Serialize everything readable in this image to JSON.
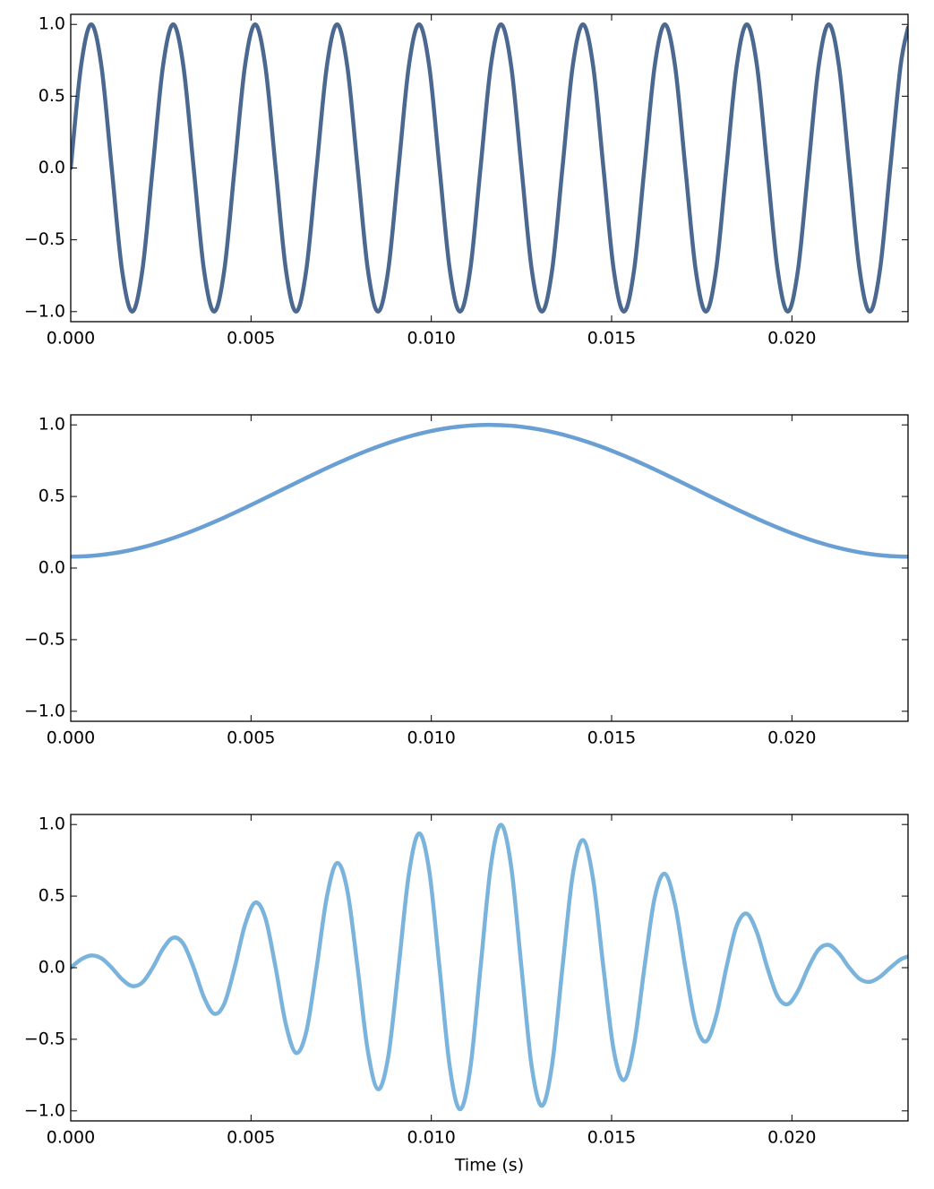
{
  "chart_data": [
    {
      "type": "line",
      "x": [
        0,
        0.000284,
        0.000568,
        0.000852,
        0.001136,
        0.00142,
        0.001705,
        0.001989,
        0.002273,
        0.002557,
        0.002841,
        0.003125,
        0.003409,
        0.003693,
        0.003977,
        0.004261,
        0.004545,
        0.00483,
        0.005114,
        0.005398,
        0.005682,
        0.005966,
        0.00625,
        0.006534,
        0.006818,
        0.007102,
        0.007386,
        0.00767,
        0.007955,
        0.008239,
        0.008523,
        0.008807,
        0.009091,
        0.009375,
        0.009659,
        0.009943,
        0.010227,
        0.010511,
        0.010795,
        0.01108,
        0.011364,
        0.011648,
        0.011932,
        0.012216,
        0.0125,
        0.012784,
        0.013068,
        0.013352,
        0.013636,
        0.01392,
        0.014205,
        0.014489,
        0.014773,
        0.015057,
        0.015341,
        0.015625,
        0.015909,
        0.016193,
        0.016477,
        0.016761,
        0.017045,
        0.01733,
        0.017614,
        0.017898,
        0.018182,
        0.018466,
        0.01875,
        0.019034,
        0.019318,
        0.019602,
        0.019886,
        0.02017,
        0.020455,
        0.020739,
        0.021023,
        0.021307,
        0.021591,
        0.021875,
        0.022159,
        0.022443,
        0.022727,
        0.023011,
        0.02322
      ],
      "series": [
        {
          "color": "#4a6890",
          "values": [
            0,
            0.707,
            1,
            0.707,
            0,
            -0.707,
            -1,
            -0.707,
            0,
            0.707,
            1,
            0.707,
            0,
            -0.707,
            -1,
            -0.707,
            0,
            0.707,
            1,
            0.707,
            0,
            -0.707,
            -1,
            -0.707,
            0,
            0.707,
            1,
            0.707,
            0,
            -0.707,
            -1,
            -0.707,
            0,
            0.707,
            1,
            0.707,
            0,
            -0.707,
            -1,
            -0.707,
            0,
            0.707,
            1,
            0.707,
            0,
            -0.707,
            -1,
            -0.707,
            0,
            0.707,
            1,
            0.707,
            0,
            -0.707,
            -1,
            -0.707,
            0,
            0.707,
            1,
            0.707,
            0,
            -0.707,
            -1,
            -0.707,
            0,
            0.707,
            1,
            0.707,
            0,
            -0.707,
            -1,
            -0.707,
            0,
            0.707,
            1,
            0.707,
            0,
            -0.707,
            -1,
            -0.707,
            0,
            0.707,
            0.978
          ]
        }
      ],
      "xlim": [
        0,
        0.02322
      ],
      "ylim": [
        -1.07,
        1.07
      ],
      "xticks": [
        {
          "value": 0,
          "label": "0.000"
        },
        {
          "value": 0.005,
          "label": "0.005"
        },
        {
          "value": 0.01,
          "label": "0.010"
        },
        {
          "value": 0.015,
          "label": "0.015"
        },
        {
          "value": 0.02,
          "label": "0.020"
        }
      ],
      "yticks": [
        {
          "value": -1,
          "label": "−1.0"
        },
        {
          "value": -0.5,
          "label": "−0.5"
        },
        {
          "value": 0,
          "label": "0.0"
        },
        {
          "value": 0.5,
          "label": "0.5"
        },
        {
          "value": 1,
          "label": "1.0"
        }
      ]
    },
    {
      "type": "line",
      "x": [
        0,
        0.000284,
        0.000568,
        0.000852,
        0.001136,
        0.00142,
        0.001705,
        0.001989,
        0.002273,
        0.002557,
        0.002841,
        0.003125,
        0.003409,
        0.003693,
        0.003977,
        0.004261,
        0.004545,
        0.00483,
        0.005114,
        0.005398,
        0.005682,
        0.005966,
        0.00625,
        0.006534,
        0.006818,
        0.007102,
        0.007386,
        0.00767,
        0.007955,
        0.008239,
        0.008523,
        0.008807,
        0.009091,
        0.009375,
        0.009659,
        0.009943,
        0.010227,
        0.010511,
        0.010795,
        0.01108,
        0.011364,
        0.011648,
        0.011932,
        0.012216,
        0.0125,
        0.012784,
        0.013068,
        0.013352,
        0.013636,
        0.01392,
        0.014205,
        0.014489,
        0.014773,
        0.015057,
        0.015341,
        0.015625,
        0.015909,
        0.016193,
        0.016477,
        0.016761,
        0.017045,
        0.01733,
        0.017614,
        0.017898,
        0.018182,
        0.018466,
        0.01875,
        0.019034,
        0.019318,
        0.019602,
        0.019886,
        0.02017,
        0.020455,
        0.020739,
        0.021023,
        0.021307,
        0.021591,
        0.021875,
        0.022159,
        0.022443,
        0.022727,
        0.023011,
        0.02322
      ],
      "series": [
        {
          "color": "#6a9fd4",
          "values": [
            0.08,
            0.0814,
            0.0854,
            0.0922,
            0.1016,
            0.1136,
            0.1281,
            0.145,
            0.1643,
            0.1858,
            0.2095,
            0.235,
            0.2623,
            0.2913,
            0.3217,
            0.3534,
            0.3863,
            0.4201,
            0.4545,
            0.4895,
            0.5247,
            0.5601,
            0.5953,
            0.6302,
            0.6646,
            0.6983,
            0.731,
            0.7625,
            0.7928,
            0.8216,
            0.8487,
            0.874,
            0.8973,
            0.9184,
            0.9374,
            0.954,
            0.9682,
            0.9799,
            0.9889,
            0.9953,
            0.999,
            1.0,
            0.9982,
            0.9938,
            0.9867,
            0.9769,
            0.9646,
            0.9497,
            0.9324,
            0.9128,
            0.891,
            0.8672,
            0.8415,
            0.8138,
            0.7847,
            0.754,
            0.7221,
            0.6891,
            0.6552,
            0.6207,
            0.5857,
            0.5504,
            0.515,
            0.4799,
            0.445,
            0.4107,
            0.3772,
            0.3445,
            0.3132,
            0.2831,
            0.2546,
            0.2279,
            0.2028,
            0.1797,
            0.1588,
            0.1401,
            0.1239,
            0.11,
            0.0987,
            0.0901,
            0.084,
            0.0807,
            0.08
          ]
        }
      ],
      "xlim": [
        0,
        0.02322
      ],
      "ylim": [
        -1.07,
        1.07
      ],
      "xticks": [
        {
          "value": 0,
          "label": "0.000"
        },
        {
          "value": 0.005,
          "label": "0.005"
        },
        {
          "value": 0.01,
          "label": "0.010"
        },
        {
          "value": 0.015,
          "label": "0.015"
        },
        {
          "value": 0.02,
          "label": "0.020"
        }
      ],
      "yticks": [
        {
          "value": -1,
          "label": "−1.0"
        },
        {
          "value": -0.5,
          "label": "−0.5"
        },
        {
          "value": 0,
          "label": "0.0"
        },
        {
          "value": 0.5,
          "label": "0.5"
        },
        {
          "value": 1,
          "label": "1.0"
        }
      ]
    },
    {
      "type": "line",
      "xlabel": "Time (s)",
      "x": [
        0,
        0.000284,
        0.000568,
        0.000852,
        0.001136,
        0.00142,
        0.001705,
        0.001989,
        0.002273,
        0.002557,
        0.002841,
        0.003125,
        0.003409,
        0.003693,
        0.003977,
        0.004261,
        0.004545,
        0.00483,
        0.005114,
        0.005398,
        0.005682,
        0.005966,
        0.00625,
        0.006534,
        0.006818,
        0.007102,
        0.007386,
        0.00767,
        0.007955,
        0.008239,
        0.008523,
        0.008807,
        0.009091,
        0.009375,
        0.009659,
        0.009943,
        0.010227,
        0.010511,
        0.010795,
        0.01108,
        0.011364,
        0.011648,
        0.011932,
        0.012216,
        0.0125,
        0.012784,
        0.013068,
        0.013352,
        0.013636,
        0.01392,
        0.014205,
        0.014489,
        0.014773,
        0.015057,
        0.015341,
        0.015625,
        0.015909,
        0.016193,
        0.016477,
        0.016761,
        0.017045,
        0.01733,
        0.017614,
        0.017898,
        0.018182,
        0.018466,
        0.01875,
        0.019034,
        0.019318,
        0.019602,
        0.019886,
        0.02017,
        0.020455,
        0.020739,
        0.021023,
        0.021307,
        0.021591,
        0.021875,
        0.022159,
        0.022443,
        0.022727,
        0.023011,
        0.02322
      ],
      "series": [
        {
          "color": "#7ab3dc",
          "values": [
            0,
            0.0576,
            0.0854,
            0.0652,
            0,
            -0.0803,
            -0.1281,
            -0.1025,
            0,
            0.1314,
            0.2095,
            0.1661,
            0,
            -0.206,
            -0.3217,
            -0.2499,
            0,
            0.297,
            0.4545,
            0.3461,
            0,
            -0.396,
            -0.5953,
            -0.4456,
            0,
            0.4937,
            0.731,
            0.5391,
            0,
            -0.5809,
            -0.8487,
            -0.6179,
            0,
            0.6493,
            0.9374,
            0.6745,
            0,
            -0.6928,
            -0.9889,
            -0.7037,
            0,
            0.707,
            0.9982,
            0.7026,
            0,
            -0.6907,
            -0.9646,
            -0.6714,
            0,
            0.6453,
            0.891,
            0.6131,
            0,
            -0.5754,
            -0.7847,
            -0.5331,
            0,
            0.4872,
            0.6552,
            0.4388,
            0,
            -0.3891,
            -0.515,
            -0.3393,
            0,
            0.2904,
            0.3772,
            0.2436,
            0,
            -0.2002,
            -0.2546,
            -0.1611,
            0,
            0.127,
            0.1588,
            0.0991,
            0,
            -0.0778,
            -0.0987,
            -0.0637,
            0,
            0.0571,
            0.0782
          ]
        }
      ],
      "xlim": [
        0,
        0.02322
      ],
      "ylim": [
        -1.07,
        1.07
      ],
      "xticks": [
        {
          "value": 0,
          "label": "0.000"
        },
        {
          "value": 0.005,
          "label": "0.005"
        },
        {
          "value": 0.01,
          "label": "0.010"
        },
        {
          "value": 0.015,
          "label": "0.015"
        },
        {
          "value": 0.02,
          "label": "0.020"
        }
      ],
      "yticks": [
        {
          "value": -1,
          "label": "−1.0"
        },
        {
          "value": -0.5,
          "label": "−0.5"
        },
        {
          "value": 0,
          "label": "0.0"
        },
        {
          "value": 0.5,
          "label": "0.5"
        },
        {
          "value": 1,
          "label": "1.0"
        }
      ]
    }
  ]
}
